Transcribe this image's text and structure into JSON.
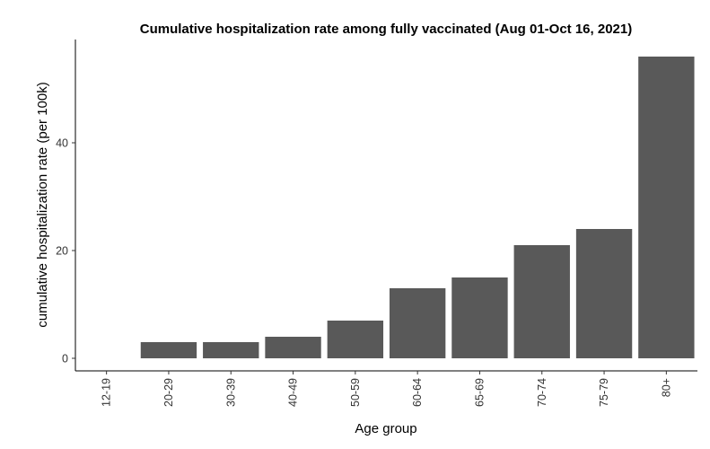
{
  "chart_data": {
    "type": "bar",
    "title": "Cumulative hospitalization rate among fully vaccinated (Aug 01-Oct 16, 2021)",
    "xlabel": "Age group",
    "ylabel": "cumulative hospitalization rate (per 100k)",
    "categories": [
      "12-19",
      "20-29",
      "30-39",
      "40-49",
      "50-59",
      "60-64",
      "65-69",
      "70-74",
      "75-79",
      "80+"
    ],
    "values": [
      0,
      3,
      3,
      4,
      7,
      13,
      15,
      21,
      24,
      56
    ],
    "yticks": [
      0,
      20,
      40
    ],
    "ylim": [
      0,
      56
    ],
    "grid": false,
    "bar_color": "#595959"
  }
}
